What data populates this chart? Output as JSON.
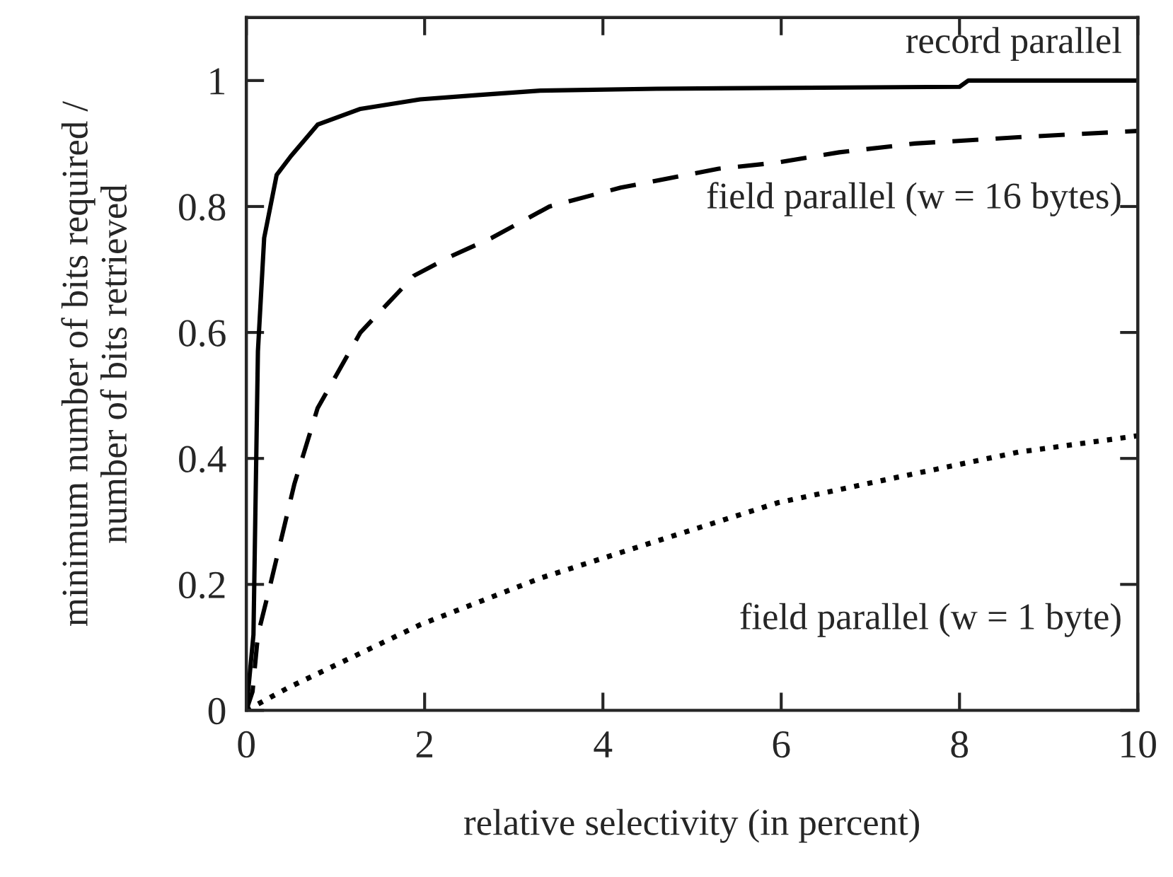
{
  "chart_data": {
    "type": "line",
    "xlabel": "relative selectivity (in percent)",
    "ylabel": "minimum number of bits required /\nnumber of bits retrieved",
    "xlim": [
      0,
      10
    ],
    "ylim": [
      0,
      1.1
    ],
    "xticks": [
      0,
      2,
      4,
      6,
      8,
      10
    ],
    "yticks": [
      0,
      0.2,
      0.4,
      0.6,
      0.8,
      1
    ],
    "grid": false,
    "legend": false,
    "marker": "none",
    "series": [
      {
        "name": "record parallel",
        "color": "#000000",
        "line_style": "solid",
        "x": [
          0,
          0.08,
          0.13,
          0.2,
          0.34,
          0.5,
          0.8,
          1.28,
          1.95,
          2.6,
          3.3,
          4.6,
          8,
          8.1,
          10
        ],
        "values": [
          0,
          0.12,
          0.57,
          0.75,
          0.85,
          0.88,
          0.93,
          0.955,
          0.97,
          0.977,
          0.984,
          0.987,
          0.99,
          1.0,
          1.0
        ]
      },
      {
        "name": "field parallel (w = 16 bytes)",
        "color": "#000000",
        "line_style": "dashed",
        "x": [
          0,
          0.07,
          0.13,
          0.27,
          0.54,
          0.8,
          1.28,
          1.88,
          2.28,
          2.75,
          3.4,
          4.2,
          5.3,
          5.97,
          6.65,
          7.5,
          8.66,
          10
        ],
        "values": [
          0,
          0.03,
          0.12,
          0.2,
          0.36,
          0.48,
          0.6,
          0.69,
          0.72,
          0.75,
          0.8,
          0.83,
          0.86,
          0.87,
          0.886,
          0.9,
          0.91,
          0.92
        ]
      },
      {
        "name": "field parallel (w = 1 byte)",
        "color": "#000000",
        "line_style": "dotted",
        "x": [
          0,
          0.47,
          1.95,
          3.3,
          4.63,
          5.97,
          7.3,
          8.66,
          10
        ],
        "values": [
          0,
          0.036,
          0.136,
          0.21,
          0.27,
          0.33,
          0.37,
          0.41,
          0.436
        ]
      }
    ]
  }
}
